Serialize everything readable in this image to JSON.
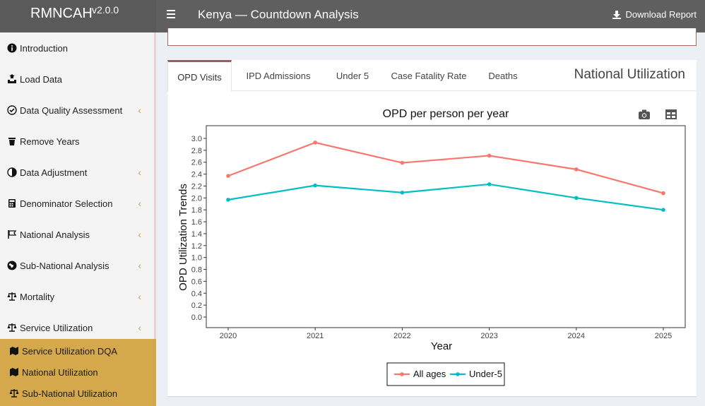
{
  "app": {
    "name": "RMNCAH",
    "version": "v2.0.0"
  },
  "header": {
    "title": "Kenya — Countdown Analysis",
    "download_label": "Download Report"
  },
  "sidebar": {
    "items": [
      {
        "label": "Introduction",
        "icon": "info-circle-icon",
        "has_chevron": false
      },
      {
        "label": "Load Data",
        "icon": "upload-icon",
        "has_chevron": false
      },
      {
        "label": "Data Quality Assessment",
        "icon": "check-circle-icon",
        "has_chevron": true
      },
      {
        "label": "Remove Years",
        "icon": "trash-icon",
        "has_chevron": false
      },
      {
        "label": "Data Adjustment",
        "icon": "adjust-icon",
        "has_chevron": true
      },
      {
        "label": "Denominator Selection",
        "icon": "calculator-icon",
        "has_chevron": true
      },
      {
        "label": "National Analysis",
        "icon": "flag-icon",
        "has_chevron": true
      },
      {
        "label": "Sub-National Analysis",
        "icon": "globe-icon",
        "has_chevron": true
      },
      {
        "label": "Mortality",
        "icon": "scale-icon",
        "has_chevron": true
      },
      {
        "label": "Service Utilization",
        "icon": "scale-icon",
        "has_chevron": true
      }
    ],
    "subitems": [
      {
        "label": "Service Utilization DQA",
        "icon": "map-icon"
      },
      {
        "label": "National Utilization",
        "icon": "map-icon"
      },
      {
        "label": "Sub-National Utilization",
        "icon": "scale-icon"
      }
    ],
    "chevron_glyph": "‹"
  },
  "card": {
    "title": "National Utilization",
    "tabs": [
      "OPD Visits",
      "IPD Admissions",
      "Under 5",
      "Case Fatality Rate",
      "Deaths"
    ],
    "active_tab": "OPD Visits"
  },
  "colors": {
    "accent": "#d4a84b",
    "topbar": "#5f5f5f",
    "series_all": "#f8766d",
    "series_u5": "#00bfc4"
  },
  "chart_data": {
    "type": "line",
    "title": "OPD per person per year",
    "xlabel": "Year",
    "ylabel": "OPD Utilization Trends",
    "x": [
      2020,
      2021,
      2022,
      2023,
      2024,
      2025
    ],
    "xticks": [
      "2020",
      "2021",
      "2022",
      "2023",
      "2024",
      "2025"
    ],
    "ylim": [
      0,
      3.1
    ],
    "yticks": [
      "0.0",
      "0.2",
      "0.4",
      "0.6",
      "0.8",
      "1.0",
      "1.2",
      "1.4",
      "1.6",
      "1.8",
      "2.0",
      "2.2",
      "2.4",
      "2.6",
      "2.8",
      "3.0"
    ],
    "series": [
      {
        "name": "All ages",
        "color": "#f8766d",
        "values": [
          2.37,
          2.93,
          2.59,
          2.71,
          2.48,
          2.08
        ]
      },
      {
        "name": "Under-5",
        "color": "#00bfc4",
        "values": [
          1.97,
          2.21,
          2.09,
          2.23,
          2.0,
          1.8
        ]
      }
    ],
    "legend_position": "bottom",
    "grid": false
  }
}
